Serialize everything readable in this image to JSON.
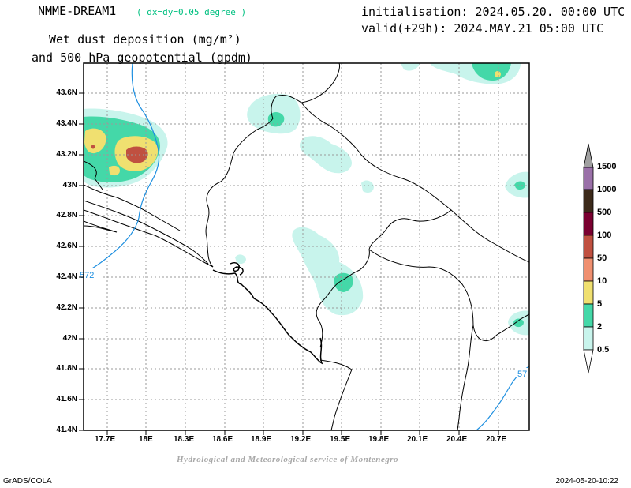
{
  "header": {
    "model": "NMME-DREAM1",
    "resolution": "( dx=dy=0.05 degree )",
    "init": "initialisation: 2024.05.20. 00:00 UTC",
    "valid": "valid(+29h): 2024.MAY.21 05:00 UTC",
    "field_line1": "Wet dust deposition (mg/m²)",
    "field_line2": "and 500 hPa geopotential (gpdm)"
  },
  "axes": {
    "lat_labels": [
      "43.6N",
      "43.4N",
      "43.2N",
      "43N",
      "42.8N",
      "42.6N",
      "42.4N",
      "42.2N",
      "42N",
      "41.8N",
      "41.6N",
      "41.4N"
    ],
    "lon_labels": [
      "17.7E",
      "18E",
      "18.3E",
      "18.6E",
      "18.9E",
      "19.2E",
      "19.5E",
      "19.8E",
      "20.1E",
      "20.4E",
      "20.7E"
    ]
  },
  "contours": [
    {
      "label": "572"
    },
    {
      "label": "57"
    }
  ],
  "colorbar": {
    "levels": [
      "1500",
      "1000",
      "500",
      "100",
      "50",
      "10",
      "5",
      "2",
      "0.5"
    ],
    "colors": [
      "#a0a0a0",
      "#9a70a8",
      "#3c2a1a",
      "#7a0030",
      "#c05040",
      "#f09070",
      "#f0e070",
      "#44d8a8",
      "#c8f4ec"
    ]
  },
  "colors": {
    "light_cyan": "#c8f4ec",
    "mint": "#44d8a8",
    "yellow": "#f0e070",
    "salmon": "#f09070",
    "brick": "#c05040",
    "geopotential": "#1e8fe0"
  },
  "footer": {
    "credit": "Hydrological and Meteorological service of Montenegro",
    "left": "GrADS/COLA",
    "right": "2024-05-20-10:22"
  }
}
